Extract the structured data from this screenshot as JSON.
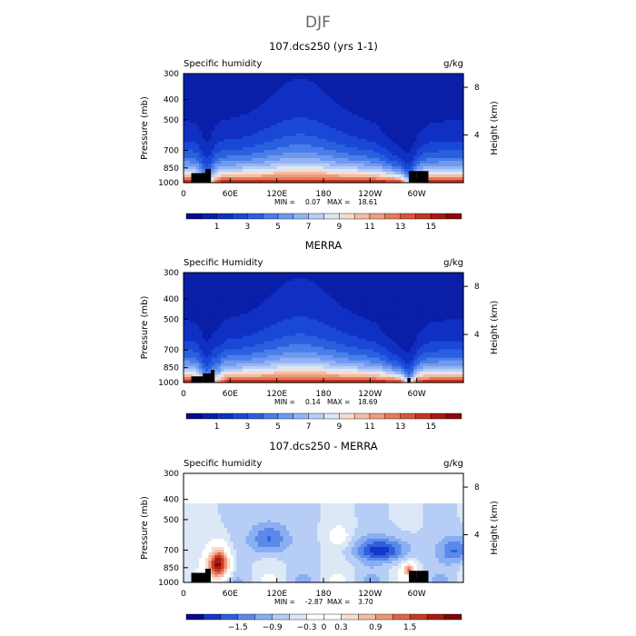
{
  "figure": {
    "title": "DJF"
  },
  "chart_data": [
    {
      "type": "heatmap",
      "panel_title": "107.dcs250 (yrs 1-1)",
      "field_label": "Specific humidity",
      "units": "g/kg",
      "ylabel": "Pressure (mb)",
      "ylabel_right": "Height (km)",
      "y_ticks": [
        "300",
        "400",
        "500",
        "700",
        "850",
        "1000"
      ],
      "y_tick_values": [
        300,
        400,
        500,
        700,
        850,
        1000
      ],
      "y_range": [
        300,
        1000
      ],
      "height_ticks": [
        "8",
        "4"
      ],
      "height_tick_values": [
        8,
        4
      ],
      "x_ticks": [
        "0",
        "60E",
        "120E",
        "180",
        "120W",
        "60W"
      ],
      "x_tick_values": [
        0,
        60,
        120,
        180,
        240,
        300
      ],
      "x_range": [
        0,
        360
      ],
      "min_label": "MIN =",
      "min_value": "0.07",
      "max_label": "MAX =",
      "max_value": "18.61",
      "colorbar_labels": [
        "1",
        "3",
        "5",
        "7",
        "9",
        "11",
        "13",
        "15"
      ],
      "colorbar_levels": [
        0,
        1,
        2,
        3,
        4,
        5,
        6,
        7,
        8,
        9,
        10,
        11,
        12,
        13,
        14,
        15,
        16
      ],
      "palette": "blue_red",
      "mode": "abs"
    },
    {
      "type": "heatmap",
      "panel_title": "MERRA",
      "field_label": "Specific Humidity",
      "units": "g/kg",
      "ylabel": "Pressure (mb)",
      "ylabel_right": "Height (km)",
      "y_ticks": [
        "300",
        "400",
        "500",
        "700",
        "850",
        "1000"
      ],
      "y_tick_values": [
        300,
        400,
        500,
        700,
        850,
        1000
      ],
      "y_range": [
        300,
        1000
      ],
      "height_ticks": [
        "8",
        "4"
      ],
      "height_tick_values": [
        8,
        4
      ],
      "x_ticks": [
        "0",
        "60E",
        "120E",
        "180",
        "120W",
        "60W"
      ],
      "x_tick_values": [
        0,
        60,
        120,
        180,
        240,
        300
      ],
      "x_range": [
        0,
        360
      ],
      "min_label": "MIN =",
      "min_value": "0.14",
      "max_label": "MAX =",
      "max_value": "18.69",
      "colorbar_labels": [
        "1",
        "3",
        "5",
        "7",
        "9",
        "11",
        "13",
        "15"
      ],
      "colorbar_levels": [
        0,
        1,
        2,
        3,
        4,
        5,
        6,
        7,
        8,
        9,
        10,
        11,
        12,
        13,
        14,
        15,
        16
      ],
      "palette": "blue_red",
      "mode": "abs"
    },
    {
      "type": "heatmap",
      "panel_title": "107.dcs250 - MERRA",
      "field_label": "Specific humidity",
      "units": "g/kg",
      "ylabel": "Pressure (mb)",
      "ylabel_right": "Height (km)",
      "y_ticks": [
        "300",
        "400",
        "500",
        "700",
        "850",
        "1000"
      ],
      "y_tick_values": [
        300,
        400,
        500,
        700,
        850,
        1000
      ],
      "y_range": [
        300,
        1000
      ],
      "height_ticks": [
        "8",
        "4"
      ],
      "height_tick_values": [
        8,
        4
      ],
      "x_ticks": [
        "0",
        "60E",
        "120E",
        "180",
        "120W",
        "60W"
      ],
      "x_tick_values": [
        0,
        60,
        120,
        180,
        240,
        300
      ],
      "x_range": [
        0,
        360
      ],
      "min_label": "MIN =",
      "min_value": "-2.87",
      "max_label": "MAX =",
      "max_value": "3.70",
      "colorbar_labels": [
        "−1.5",
        "−0.9",
        "−0.3",
        "0",
        "0.3",
        "0.9",
        "1.5"
      ],
      "colorbar_levels": [
        -2.1,
        -1.8,
        -1.5,
        -1.2,
        -0.9,
        -0.6,
        -0.3,
        0,
        0.3,
        0.6,
        0.9,
        1.2,
        1.5,
        1.8,
        2.1
      ],
      "palette": "blue_white_red",
      "mode": "diff"
    }
  ]
}
